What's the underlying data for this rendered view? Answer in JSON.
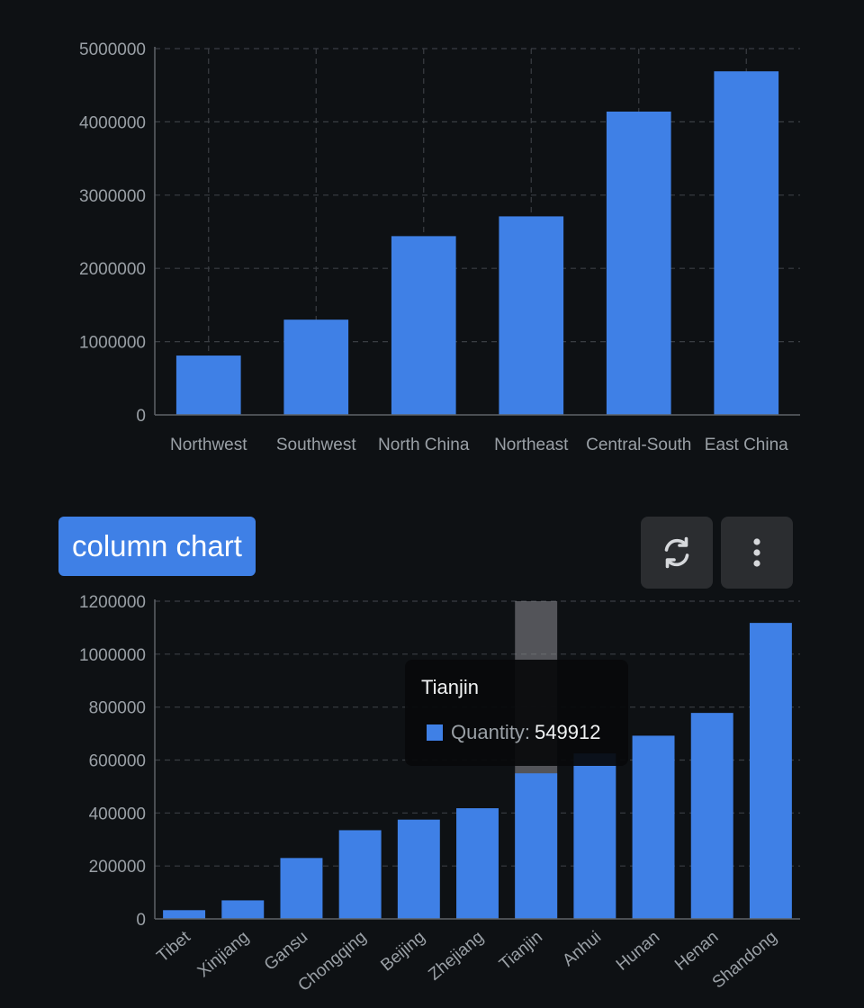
{
  "chart_data": [
    {
      "type": "bar",
      "title": "",
      "xlabel": "",
      "ylabel": "",
      "categories": [
        "Northwest",
        "Southwest",
        "North China",
        "Northeast",
        "Central-South",
        "East China"
      ],
      "values": [
        810000,
        1300000,
        2440000,
        2710000,
        4140000,
        4690000
      ],
      "ylim": [
        0,
        5000000
      ],
      "yticks": [
        "0",
        "1000000",
        "2000000",
        "3000000",
        "4000000",
        "5000000"
      ],
      "grid": true,
      "color": "#3f80e6"
    },
    {
      "type": "bar",
      "title": "column chart",
      "xlabel": "",
      "ylabel": "",
      "categories": [
        "Tibet",
        "Xinjiang",
        "Gansu",
        "Chongqing",
        "Beijing",
        "Zhejiang",
        "Tianjin",
        "Anhui",
        "Hunan",
        "Henan",
        "Shandong"
      ],
      "values": [
        33000,
        70000,
        230000,
        335000,
        375000,
        418000,
        549912,
        625000,
        692000,
        778000,
        1118000
      ],
      "ylim": [
        0,
        1200000
      ],
      "yticks": [
        "0",
        "200000",
        "400000",
        "600000",
        "800000",
        "1000000",
        "1200000"
      ],
      "grid": true,
      "color": "#3f80e6",
      "tooltip": {
        "category": "Tianjin",
        "series_label": "Quantity:",
        "value": "549912"
      }
    }
  ],
  "toolbar": {
    "refresh_icon": "refresh-icon",
    "more_icon": "more-vertical-icon"
  },
  "colors": {
    "background": "#0e1114",
    "bar": "#3f80e6",
    "button": "#2b2d30"
  }
}
